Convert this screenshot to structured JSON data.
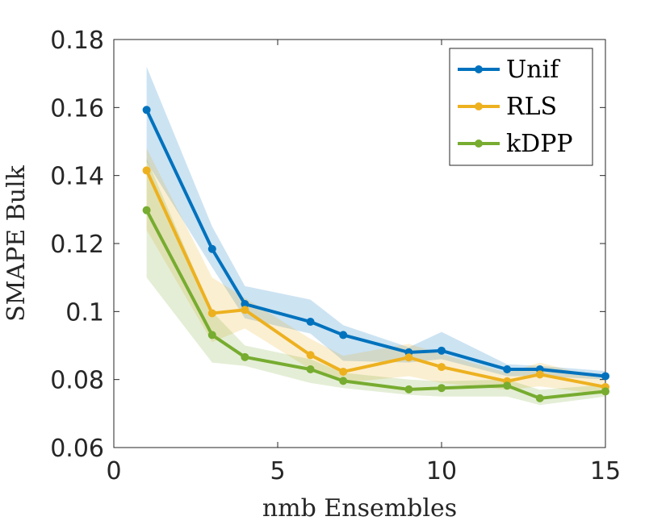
{
  "chart_data": {
    "type": "line",
    "xlabel": "nmb Ensembles",
    "ylabel": "SMAPE Bulk",
    "xlim": [
      0,
      15
    ],
    "ylim": [
      0.06,
      0.18
    ],
    "xticks": [
      0,
      5,
      10,
      15
    ],
    "xtick_labels": [
      "0",
      "5",
      "10",
      "15"
    ],
    "yticks": [
      0.06,
      0.08,
      0.1,
      0.12,
      0.14,
      0.16,
      0.18
    ],
    "ytick_labels": [
      "0.06",
      "0.08",
      "0.1",
      "0.12",
      "0.14",
      "0.16",
      "0.18"
    ],
    "grid": false,
    "legend_position": "top-right",
    "x": [
      1,
      3,
      4,
      6,
      7,
      9,
      10,
      12,
      13,
      15
    ],
    "series": [
      {
        "name": "Unif",
        "color": "#0072BD",
        "band_color": "#0072BD",
        "values": [
          0.1593,
          0.1184,
          0.1022,
          0.097,
          0.0931,
          0.088,
          0.0885,
          0.083,
          0.083,
          0.081
        ],
        "upper": [
          0.172,
          0.125,
          0.1075,
          0.1035,
          0.096,
          0.0895,
          0.094,
          0.0845,
          0.084,
          0.0825
        ],
        "lower": [
          0.144,
          0.113,
          0.098,
          0.0935,
          0.0855,
          0.085,
          0.086,
          0.081,
          0.081,
          0.08
        ]
      },
      {
        "name": "RLS",
        "color": "#EDB120",
        "band_color": "#EDB120",
        "values": [
          0.1415,
          0.0995,
          0.1005,
          0.0872,
          0.0823,
          0.0865,
          0.0837,
          0.0795,
          0.0815,
          0.0778
        ],
        "upper": [
          0.148,
          0.11,
          0.104,
          0.092,
          0.087,
          0.0905,
          0.0875,
          0.082,
          0.085,
          0.08
        ],
        "lower": [
          0.124,
          0.091,
          0.095,
          0.083,
          0.079,
          0.081,
          0.079,
          0.077,
          0.078,
          0.0755
        ]
      },
      {
        "name": "kDPP",
        "color": "#77AC30",
        "band_color": "#77AC30",
        "values": [
          0.1298,
          0.0931,
          0.0866,
          0.083,
          0.0796,
          0.0771,
          0.0775,
          0.0782,
          0.0745,
          0.0765
        ],
        "upper": [
          0.145,
          0.1,
          0.09,
          0.086,
          0.082,
          0.08,
          0.0795,
          0.08,
          0.077,
          0.0785
        ],
        "lower": [
          0.11,
          0.085,
          0.084,
          0.079,
          0.0775,
          0.0755,
          0.075,
          0.075,
          0.0725,
          0.075
        ]
      }
    ]
  }
}
